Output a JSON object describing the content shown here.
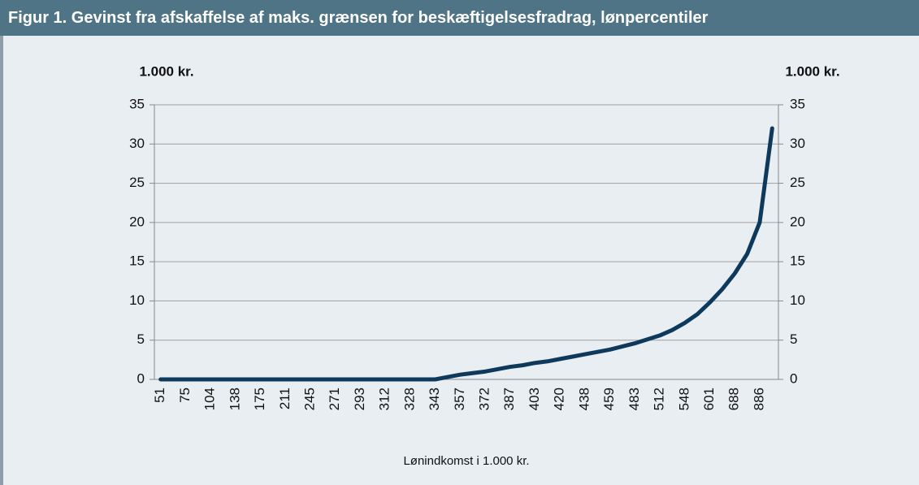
{
  "chart_data": {
    "type": "line",
    "title": "Figur 1. Gevinst fra afskaffelse af maks. grænsen for beskæftigelsesfradrag, lønpercentiler",
    "y_label": "1.000 kr.",
    "y2_label": "1.000 kr.",
    "x_label": "Lønindkomst i 1.000 kr.",
    "categories": [
      "51",
      null,
      "75",
      null,
      "104",
      null,
      "138",
      null,
      "175",
      null,
      "211",
      null,
      "245",
      null,
      "271",
      null,
      "293",
      null,
      "312",
      null,
      "328",
      null,
      "343",
      null,
      "357",
      null,
      "372",
      null,
      "387",
      null,
      "403",
      null,
      "420",
      null,
      "438",
      null,
      "459",
      null,
      "483",
      null,
      "512",
      null,
      "548",
      null,
      "601",
      null,
      "688",
      null,
      "886",
      null
    ],
    "series": [
      {
        "name": "Gevinst",
        "color": "#0d3a5c",
        "values": [
          0,
          0,
          0,
          0,
          0,
          0,
          0,
          0,
          0,
          0,
          0,
          0,
          0,
          0,
          0,
          0,
          0,
          0,
          0,
          0,
          0,
          0,
          0,
          0.3,
          0.6,
          0.8,
          1.0,
          1.3,
          1.6,
          1.8,
          2.1,
          2.3,
          2.6,
          2.9,
          3.2,
          3.5,
          3.8,
          4.2,
          4.6,
          5.1,
          5.6,
          6.3,
          7.2,
          8.3,
          9.8,
          11.5,
          13.5,
          16,
          20,
          32
        ]
      }
    ],
    "ylim": [
      0,
      35
    ],
    "yticks": [
      0,
      5,
      10,
      15,
      20,
      25,
      30,
      35
    ],
    "y2lim": [
      0,
      35
    ],
    "y2ticks": [
      0,
      5,
      10,
      15,
      20,
      25,
      30,
      35
    ],
    "grid": true
  }
}
